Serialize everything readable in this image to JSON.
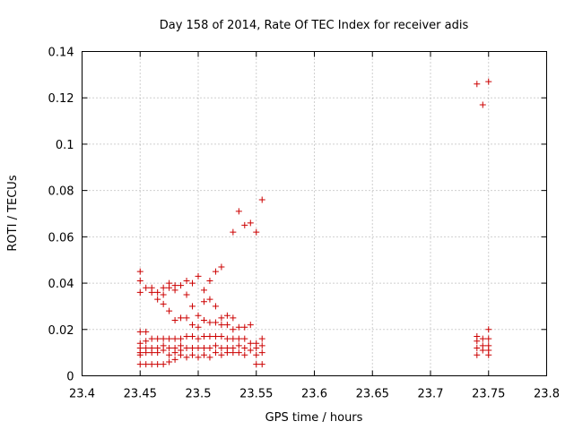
{
  "chart_data": {
    "type": "scatter",
    "title": "Day 158 of 2014, Rate Of TEC Index for receiver adis",
    "xlabel": "GPS time / hours",
    "ylabel": "ROTI / TECUs",
    "xlim": [
      23.4,
      23.8
    ],
    "ylim": [
      0,
      0.14
    ],
    "xticks": [
      23.4,
      23.45,
      23.5,
      23.55,
      23.6,
      23.65,
      23.7,
      23.75,
      23.8
    ],
    "yticks": [
      0,
      0.02,
      0.04,
      0.06,
      0.08,
      0.1,
      0.12,
      0.14
    ],
    "xtick_labels": [
      "23.4",
      "23.45",
      "23.5",
      "23.55",
      "23.6",
      "23.65",
      "23.7",
      "23.75",
      "23.8"
    ],
    "ytick_labels": [
      "0",
      "0.02",
      "0.04",
      "0.06",
      "0.08",
      "0.1",
      "0.12",
      "0.14"
    ],
    "grid": true,
    "marker": "+",
    "marker_color": "#cc0000",
    "points": [
      [
        23.45,
        0.045
      ],
      [
        23.45,
        0.041
      ],
      [
        23.45,
        0.036
      ],
      [
        23.45,
        0.019
      ],
      [
        23.45,
        0.014
      ],
      [
        23.45,
        0.012
      ],
      [
        23.45,
        0.01
      ],
      [
        23.45,
        0.009
      ],
      [
        23.45,
        0.005
      ],
      [
        23.455,
        0.038
      ],
      [
        23.455,
        0.019
      ],
      [
        23.455,
        0.015
      ],
      [
        23.455,
        0.012
      ],
      [
        23.455,
        0.01
      ],
      [
        23.455,
        0.005
      ],
      [
        23.46,
        0.038
      ],
      [
        23.46,
        0.036
      ],
      [
        23.46,
        0.016
      ],
      [
        23.46,
        0.012
      ],
      [
        23.46,
        0.01
      ],
      [
        23.46,
        0.005
      ],
      [
        23.465,
        0.036
      ],
      [
        23.465,
        0.033
      ],
      [
        23.465,
        0.016
      ],
      [
        23.465,
        0.012
      ],
      [
        23.465,
        0.01
      ],
      [
        23.465,
        0.005
      ],
      [
        23.47,
        0.038
      ],
      [
        23.47,
        0.035
      ],
      [
        23.47,
        0.031
      ],
      [
        23.47,
        0.016
      ],
      [
        23.47,
        0.013
      ],
      [
        23.47,
        0.011
      ],
      [
        23.47,
        0.005
      ],
      [
        23.475,
        0.04
      ],
      [
        23.475,
        0.038
      ],
      [
        23.475,
        0.028
      ],
      [
        23.475,
        0.016
      ],
      [
        23.475,
        0.012
      ],
      [
        23.475,
        0.009
      ],
      [
        23.475,
        0.006
      ],
      [
        23.48,
        0.039
      ],
      [
        23.48,
        0.037
      ],
      [
        23.48,
        0.024
      ],
      [
        23.48,
        0.016
      ],
      [
        23.48,
        0.012
      ],
      [
        23.48,
        0.01
      ],
      [
        23.48,
        0.007
      ],
      [
        23.485,
        0.039
      ],
      [
        23.485,
        0.025
      ],
      [
        23.485,
        0.016
      ],
      [
        23.485,
        0.013
      ],
      [
        23.485,
        0.011
      ],
      [
        23.485,
        0.009
      ],
      [
        23.49,
        0.041
      ],
      [
        23.49,
        0.035
      ],
      [
        23.49,
        0.025
      ],
      [
        23.49,
        0.017
      ],
      [
        23.49,
        0.012
      ],
      [
        23.49,
        0.008
      ],
      [
        23.495,
        0.04
      ],
      [
        23.495,
        0.03
      ],
      [
        23.495,
        0.022
      ],
      [
        23.495,
        0.017
      ],
      [
        23.495,
        0.012
      ],
      [
        23.495,
        0.009
      ],
      [
        23.5,
        0.043
      ],
      [
        23.5,
        0.026
      ],
      [
        23.5,
        0.021
      ],
      [
        23.5,
        0.016
      ],
      [
        23.5,
        0.012
      ],
      [
        23.5,
        0.008
      ],
      [
        23.505,
        0.037
      ],
      [
        23.505,
        0.032
      ],
      [
        23.505,
        0.024
      ],
      [
        23.505,
        0.017
      ],
      [
        23.505,
        0.012
      ],
      [
        23.505,
        0.009
      ],
      [
        23.51,
        0.041
      ],
      [
        23.51,
        0.033
      ],
      [
        23.51,
        0.023
      ],
      [
        23.51,
        0.017
      ],
      [
        23.51,
        0.012
      ],
      [
        23.51,
        0.008
      ],
      [
        23.515,
        0.045
      ],
      [
        23.515,
        0.03
      ],
      [
        23.515,
        0.023
      ],
      [
        23.515,
        0.017
      ],
      [
        23.515,
        0.013
      ],
      [
        23.515,
        0.01
      ],
      [
        23.52,
        0.047
      ],
      [
        23.52,
        0.025
      ],
      [
        23.52,
        0.022
      ],
      [
        23.52,
        0.017
      ],
      [
        23.52,
        0.012
      ],
      [
        23.52,
        0.009
      ],
      [
        23.525,
        0.026
      ],
      [
        23.525,
        0.022
      ],
      [
        23.525,
        0.016
      ],
      [
        23.525,
        0.012
      ],
      [
        23.525,
        0.01
      ],
      [
        23.53,
        0.062
      ],
      [
        23.53,
        0.025
      ],
      [
        23.53,
        0.02
      ],
      [
        23.53,
        0.016
      ],
      [
        23.53,
        0.012
      ],
      [
        23.53,
        0.01
      ],
      [
        23.535,
        0.071
      ],
      [
        23.535,
        0.021
      ],
      [
        23.535,
        0.016
      ],
      [
        23.535,
        0.013
      ],
      [
        23.535,
        0.01
      ],
      [
        23.54,
        0.065
      ],
      [
        23.54,
        0.021
      ],
      [
        23.54,
        0.016
      ],
      [
        23.54,
        0.012
      ],
      [
        23.54,
        0.009
      ],
      [
        23.545,
        0.066
      ],
      [
        23.545,
        0.022
      ],
      [
        23.545,
        0.014
      ],
      [
        23.545,
        0.011
      ],
      [
        23.55,
        0.062
      ],
      [
        23.55,
        0.014
      ],
      [
        23.55,
        0.012
      ],
      [
        23.55,
        0.009
      ],
      [
        23.55,
        0.005
      ],
      [
        23.555,
        0.076
      ],
      [
        23.555,
        0.016
      ],
      [
        23.555,
        0.013
      ],
      [
        23.555,
        0.01
      ],
      [
        23.555,
        0.005
      ],
      [
        23.74,
        0.126
      ],
      [
        23.74,
        0.017
      ],
      [
        23.74,
        0.015
      ],
      [
        23.74,
        0.012
      ],
      [
        23.74,
        0.009
      ],
      [
        23.745,
        0.117
      ],
      [
        23.745,
        0.016
      ],
      [
        23.745,
        0.013
      ],
      [
        23.745,
        0.011
      ],
      [
        23.75,
        0.127
      ],
      [
        23.75,
        0.02
      ],
      [
        23.75,
        0.016
      ],
      [
        23.75,
        0.013
      ],
      [
        23.75,
        0.011
      ],
      [
        23.75,
        0.009
      ]
    ]
  }
}
